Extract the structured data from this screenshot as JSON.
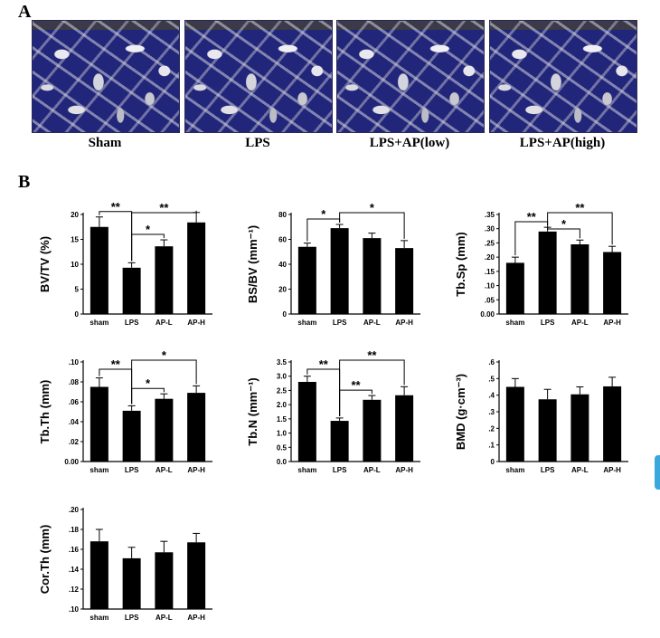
{
  "panel_a": {
    "label": "A",
    "images": [
      {
        "caption": "Sham"
      },
      {
        "caption": "LPS"
      },
      {
        "caption": "LPS+AP(low)"
      },
      {
        "caption": "LPS+AP(high)"
      }
    ]
  },
  "panel_b": {
    "label": "B"
  },
  "chart_data": [
    {
      "type": "bar",
      "ylabel": "BV/TV (%)",
      "categories": [
        "sham",
        "LPS",
        "AP-L",
        "AP-H"
      ],
      "values": [
        17.5,
        9.3,
        13.6,
        18.4
      ],
      "errors": [
        2.0,
        1.0,
        1.3,
        2.0
      ],
      "ylim": [
        0,
        20
      ],
      "yticks": [
        0,
        5,
        10,
        15,
        20
      ],
      "ytick_labels": [
        "0",
        "5",
        "10",
        "15",
        "20"
      ],
      "significance": [
        {
          "from": 0,
          "to": 1,
          "label": "**"
        },
        {
          "from": 1,
          "to": 3,
          "label": "**"
        },
        {
          "from": 1,
          "to": 2,
          "label": "*"
        }
      ]
    },
    {
      "type": "bar",
      "ylabel": "BS/BV (mm⁻¹)",
      "categories": [
        "sham",
        "LPS",
        "AP-L",
        "AP-H"
      ],
      "values": [
        54,
        69,
        61,
        53
      ],
      "errors": [
        3,
        3,
        4,
        6
      ],
      "ylim": [
        0,
        80
      ],
      "yticks": [
        0,
        20,
        40,
        60,
        80
      ],
      "ytick_labels": [
        "0",
        "20",
        "40",
        "60",
        "80"
      ],
      "significance": [
        {
          "from": 0,
          "to": 1,
          "label": "*"
        },
        {
          "from": 1,
          "to": 3,
          "label": "*"
        }
      ]
    },
    {
      "type": "bar",
      "ylabel": "Tb.Sp (mm)",
      "categories": [
        "sham",
        "LPS",
        "AP-L",
        "AP-H"
      ],
      "values": [
        0.18,
        0.29,
        0.245,
        0.218
      ],
      "errors": [
        0.02,
        0.015,
        0.015,
        0.02
      ],
      "ylim": [
        0,
        0.35
      ],
      "yticks": [
        0,
        0.05,
        0.1,
        0.15,
        0.2,
        0.25,
        0.3,
        0.35
      ],
      "ytick_labels": [
        "0.00",
        ".05",
        ".10",
        ".15",
        ".20",
        ".25",
        ".30",
        ".35"
      ],
      "significance": [
        {
          "from": 0,
          "to": 1,
          "label": "**"
        },
        {
          "from": 1,
          "to": 3,
          "label": "**"
        },
        {
          "from": 1,
          "to": 2,
          "label": "*"
        }
      ]
    },
    {
      "type": "bar",
      "ylabel": "Tb.Th (mm)",
      "categories": [
        "sham",
        "LPS",
        "AP-L",
        "AP-H"
      ],
      "values": [
        0.075,
        0.051,
        0.063,
        0.069
      ],
      "errors": [
        0.009,
        0.005,
        0.005,
        0.007
      ],
      "ylim": [
        0,
        0.1
      ],
      "yticks": [
        0,
        0.02,
        0.04,
        0.06,
        0.08,
        0.1
      ],
      "ytick_labels": [
        "0.00",
        ".02",
        ".04",
        ".06",
        ".08",
        ".10"
      ],
      "significance": [
        {
          "from": 0,
          "to": 1,
          "label": "**"
        },
        {
          "from": 1,
          "to": 3,
          "label": "*"
        },
        {
          "from": 1,
          "to": 2,
          "label": "*"
        }
      ]
    },
    {
      "type": "bar",
      "ylabel": "Tb.N (mm⁻¹)",
      "categories": [
        "sham",
        "LPS",
        "AP-L",
        "AP-H"
      ],
      "values": [
        2.8,
        1.43,
        2.17,
        2.33
      ],
      "errors": [
        0.2,
        0.1,
        0.15,
        0.3
      ],
      "ylim": [
        0,
        3.5
      ],
      "yticks": [
        0,
        0.5,
        1,
        1.5,
        2,
        2.5,
        3,
        3.5
      ],
      "ytick_labels": [
        "0.0",
        "0.5",
        "1.0",
        "1.5",
        "2.0",
        "2.5",
        "3.0",
        "3.5"
      ],
      "significance": [
        {
          "from": 0,
          "to": 1,
          "label": "**"
        },
        {
          "from": 1,
          "to": 3,
          "label": "**"
        },
        {
          "from": 1,
          "to": 2,
          "label": "**"
        }
      ]
    },
    {
      "type": "bar",
      "ylabel": "BMD (g·cm⁻³)",
      "categories": [
        "sham",
        "LPS",
        "AP-L",
        "AP-H"
      ],
      "values": [
        0.45,
        0.375,
        0.405,
        0.453
      ],
      "errors": [
        0.05,
        0.06,
        0.045,
        0.055
      ],
      "ylim": [
        0,
        0.6
      ],
      "yticks": [
        0,
        0.1,
        0.2,
        0.3,
        0.4,
        0.5,
        0.6
      ],
      "ytick_labels": [
        "0",
        ".1",
        ".2",
        ".3",
        ".4",
        ".5",
        ".6"
      ],
      "significance": []
    },
    {
      "type": "bar",
      "ylabel": "Cor.Th (mm)",
      "categories": [
        "sham",
        "LPS",
        "AP-L",
        "AP-H"
      ],
      "values": [
        0.168,
        0.151,
        0.157,
        0.167
      ],
      "errors": [
        0.012,
        0.011,
        0.011,
        0.009
      ],
      "ylim": [
        0.1,
        0.2
      ],
      "yticks": [
        0.1,
        0.12,
        0.14,
        0.16,
        0.18,
        0.2
      ],
      "ytick_labels": [
        ".10",
        ".12",
        ".14",
        ".16",
        ".18",
        ".20"
      ],
      "significance": []
    }
  ]
}
